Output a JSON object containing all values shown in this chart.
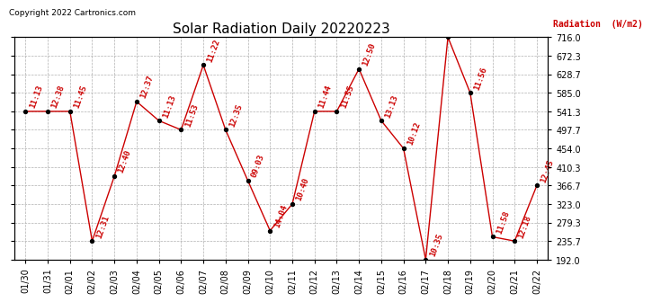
{
  "title": "Solar Radiation Daily 20220223",
  "copyright": "Copyright 2022 Cartronics.com",
  "ylabel": "Radiation  (W/m2)",
  "dates": [
    "01/30",
    "01/31",
    "02/01",
    "02/02",
    "02/03",
    "02/04",
    "02/05",
    "02/06",
    "02/07",
    "02/08",
    "02/09",
    "02/10",
    "02/11",
    "02/12",
    "02/13",
    "02/14",
    "02/15",
    "02/16",
    "02/17",
    "02/18",
    "02/19",
    "02/20",
    "02/21",
    "02/22"
  ],
  "values": [
    541.3,
    541.3,
    541.3,
    235.7,
    388.7,
    564.3,
    519.3,
    497.7,
    650.3,
    497.7,
    378.3,
    260.3,
    323.0,
    541.3,
    541.3,
    641.3,
    519.3,
    454.0,
    192.0,
    716.0,
    585.0,
    245.7,
    235.7,
    366.7
  ],
  "time_labels": [
    "11:13",
    "12:38",
    "11:45",
    "12:31",
    "12:40",
    "12:37",
    "11:13",
    "11:53",
    "11:22",
    "12:35",
    "09:03",
    "14:04",
    "10:40",
    "11:44",
    "11:55",
    "12:50",
    "13:13",
    "10:12",
    "10:35",
    "",
    "11:56",
    "11:58",
    "12:18",
    "12:45"
  ],
  "ylim_min": 192.0,
  "ylim_max": 716.0,
  "yticks": [
    192.0,
    235.7,
    279.3,
    323.0,
    366.7,
    410.3,
    454.0,
    497.7,
    541.3,
    585.0,
    628.7,
    672.3,
    716.0
  ],
  "line_color": "#cc0000",
  "dot_color": "#000000",
  "label_color": "#cc0000",
  "bg_color": "#ffffff",
  "grid_color": "#b0b0b0",
  "title_fontsize": 11,
  "label_fontsize": 6.5,
  "tick_fontsize": 7,
  "copyright_fontsize": 6.5
}
